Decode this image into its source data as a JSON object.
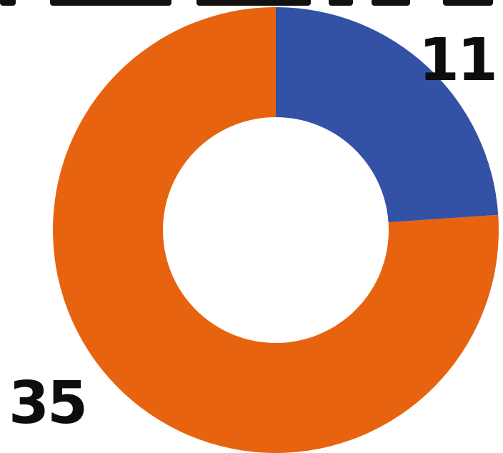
{
  "chart_data": {
    "type": "pie",
    "variant": "donut",
    "title": "",
    "categories": [
      "",
      ""
    ],
    "values": [
      11,
      35
    ],
    "colors": [
      "#3352a6",
      "#e8630f"
    ],
    "data_labels": [
      "11",
      "35"
    ],
    "legend": "none"
  }
}
